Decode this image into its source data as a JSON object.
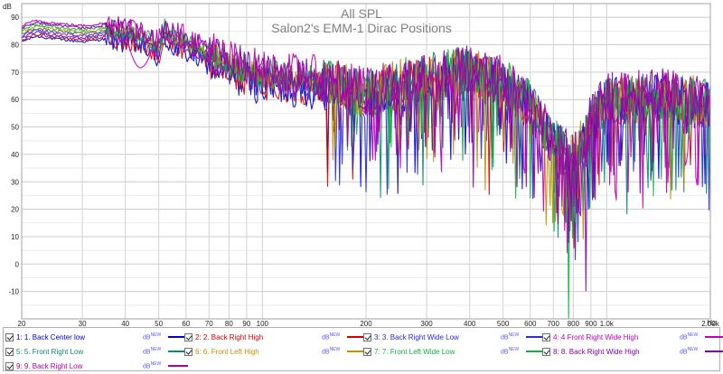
{
  "window": {
    "title": "All SPL",
    "subtitle": "Salon2's EMM-1 Dirac Positions"
  },
  "chart_data": {
    "type": "line",
    "title": "All SPL",
    "subtitle": "Salon2's EMM-1 Dirac Positions",
    "ylabel": "dB",
    "xunit": "Hz",
    "xscale": "log",
    "xlim": [
      20,
      2000
    ],
    "ylim": [
      -20,
      95
    ],
    "grid": true,
    "y_ticks": [
      "90",
      "80",
      "70",
      "60",
      "50",
      "40",
      "30",
      "20",
      "10",
      "0",
      "-10"
    ],
    "y_tick_values": [
      90,
      80,
      70,
      60,
      50,
      40,
      30,
      20,
      10,
      0,
      -10
    ],
    "x_ticks": [
      "20",
      "30",
      "40",
      "50",
      "60",
      "70",
      "80",
      "90",
      "100",
      "200",
      "300",
      "400",
      "500",
      "600",
      "700",
      "800",
      "900",
      "1.0k",
      "2.00k"
    ],
    "x_tick_values": [
      20,
      30,
      40,
      50,
      60,
      70,
      80,
      90,
      100,
      200,
      300,
      400,
      500,
      600,
      700,
      800,
      900,
      1000,
      2000
    ],
    "envelope": {
      "x": [
        20,
        22,
        25,
        30,
        35,
        40,
        45,
        50,
        52,
        55,
        60,
        70,
        80,
        100,
        150,
        200,
        300,
        400,
        500,
        600,
        700,
        800,
        900,
        1000,
        1500,
        2000
      ],
      "y": [
        84,
        86,
        85,
        84,
        85,
        84,
        82,
        78,
        85,
        82,
        80,
        76,
        72,
        68,
        66,
        62,
        68,
        70,
        66,
        58,
        44,
        38,
        52,
        60,
        62,
        58
      ]
    },
    "series": [
      {
        "id": 1,
        "name": "1: 1. Back Center low",
        "color": "#0000c8"
      },
      {
        "id": 2,
        "name": "2: 2. Back Right High",
        "color": "#d40000"
      },
      {
        "id": 3,
        "name": "3: 3. Back Right Wide Low",
        "color": "#2a2ad8"
      },
      {
        "id": 4,
        "name": "4: 4 Front Right Wide High",
        "color": "#c000c0"
      },
      {
        "id": 5,
        "name": "5: 5. Front Right Low",
        "color": "#0a8a6a"
      },
      {
        "id": 6,
        "name": "6: 6. Front Left High",
        "color": "#c09000"
      },
      {
        "id": 7,
        "name": "7: 7. Front Left Wide Low",
        "color": "#10b040"
      },
      {
        "id": 8,
        "name": "8: 8. Back Right Wide High",
        "color": "#8000b0"
      },
      {
        "id": 9,
        "name": "9: 9. Back Right Low",
        "color": "#b000a0"
      }
    ]
  },
  "legend": {
    "unit": "dB",
    "unit_sup": "NEW"
  }
}
